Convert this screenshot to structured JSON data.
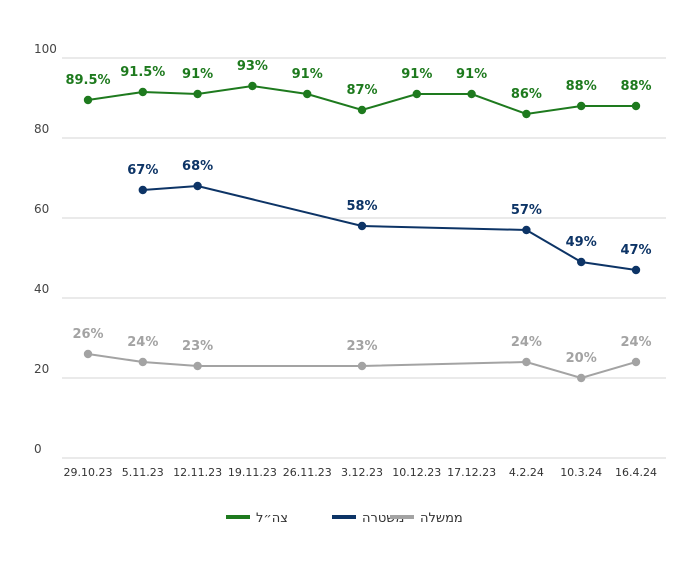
{
  "chart_data": {
    "type": "line",
    "x": [
      "29.10.23",
      "5.11.23",
      "12.11.23",
      "19.11.23",
      "26.11.23",
      "3.12.23",
      "10.12.23",
      "17.12.23",
      "4.2.24",
      "10.3.24",
      "16.4.24"
    ],
    "ylim": [
      0,
      100
    ],
    "yticks": [
      0,
      20,
      40,
      60,
      80,
      100
    ],
    "grid": true,
    "legend_position": "bottom",
    "series": [
      {
        "name": "צה״ל",
        "color": "#1e7a1e",
        "values": [
          89.5,
          91.5,
          91,
          93,
          91,
          87,
          91,
          91,
          86,
          88,
          88
        ],
        "labels": [
          "89.5%",
          "91.5%",
          "91%",
          "93%",
          "91%",
          "87%",
          "91%",
          "91%",
          "86%",
          "88%",
          "88%"
        ]
      },
      {
        "name": "משטרה",
        "color": "#0d3466",
        "values": [
          null,
          67,
          68,
          null,
          null,
          58,
          null,
          null,
          57,
          49,
          47
        ],
        "labels": [
          null,
          "67%",
          "68%",
          null,
          null,
          "58%",
          null,
          null,
          "57%",
          "49%",
          "47%"
        ]
      },
      {
        "name": "ממשלה",
        "color": "#a3a3a3",
        "values": [
          26,
          24,
          23,
          null,
          null,
          23,
          null,
          null,
          24,
          20,
          24
        ],
        "labels": [
          "26%",
          "24%",
          "23%",
          null,
          null,
          "23%",
          null,
          null,
          "24%",
          "20%",
          "24%"
        ]
      }
    ]
  }
}
